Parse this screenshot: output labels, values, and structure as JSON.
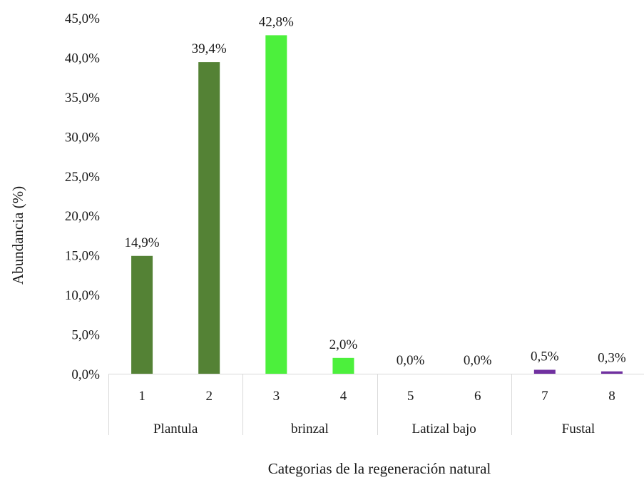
{
  "chart_data": {
    "type": "bar",
    "title": "",
    "xlabel": "Categorias de la regeneración natural",
    "ylabel": "Abundancia (%)",
    "ylim": [
      0,
      45
    ],
    "yticks": [
      "0,0%",
      "5,0%",
      "10,0%",
      "15,0%",
      "20,0%",
      "25,0%",
      "30,0%",
      "35,0%",
      "40,0%",
      "45,0%"
    ],
    "categories": [
      "1",
      "2",
      "3",
      "4",
      "5",
      "6",
      "7",
      "8"
    ],
    "values": [
      14.9,
      39.4,
      42.8,
      2.0,
      0.0,
      0.0,
      0.5,
      0.3
    ],
    "data_labels": [
      "14,9%",
      "39,4%",
      "42,8%",
      "2,0%",
      "0,0%",
      "0,0%",
      "0,5%",
      "0,3%"
    ],
    "groups": [
      {
        "label": "Plantula",
        "categories": [
          "1",
          "2"
        ],
        "color": "#548235"
      },
      {
        "label": "brinzal",
        "categories": [
          "3",
          "4"
        ],
        "color": "#4cf03c"
      },
      {
        "label": "Latizal bajo",
        "categories": [
          "5",
          "6"
        ],
        "color": "#4cf03c"
      },
      {
        "label": "Fustal",
        "categories": [
          "7",
          "8"
        ],
        "color": "#7030a0"
      }
    ],
    "grid": false,
    "legend": "none"
  }
}
